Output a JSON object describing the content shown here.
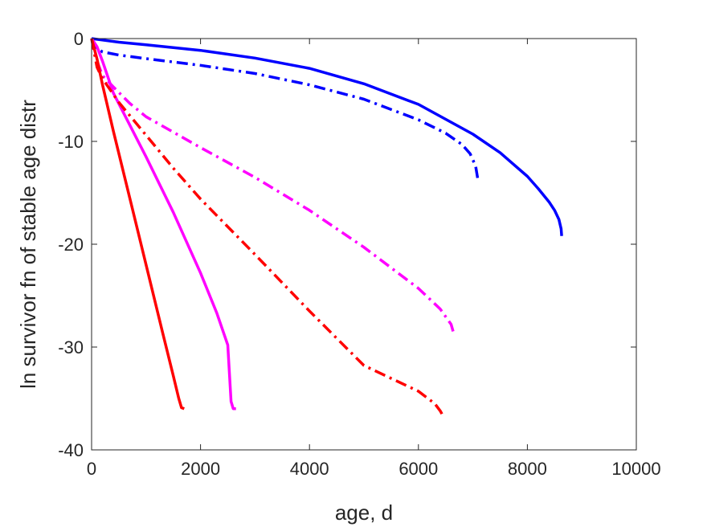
{
  "chart_data": {
    "type": "line",
    "title": "",
    "xlabel": "age, d",
    "ylabel": "ln survivor fn of stable age distr",
    "xlim": [
      0,
      10000
    ],
    "ylim": [
      -40,
      0
    ],
    "xticks": [
      "0",
      "2000",
      "4000",
      "6000",
      "8000",
      "10000"
    ],
    "yticks": [
      "0",
      "-10",
      "-20",
      "-30",
      "-40"
    ],
    "grid": false,
    "legend": "none",
    "series": [
      {
        "color": "#0000ff",
        "style": "solid",
        "x": [
          0,
          500,
          1000,
          2000,
          3000,
          4000,
          5000,
          6000,
          7000,
          7500,
          8000,
          8200,
          8400,
          8500,
          8580,
          8620,
          8630
        ],
        "y": [
          0,
          -0.35,
          -0.6,
          -1.15,
          -1.9,
          -2.9,
          -4.4,
          -6.4,
          -9.3,
          -11.1,
          -13.4,
          -14.6,
          -15.9,
          -16.7,
          -17.6,
          -18.5,
          -19.2
        ]
      },
      {
        "color": "#0000ff",
        "style": "dashdot",
        "x": [
          0,
          50,
          200,
          500,
          1000,
          2000,
          3000,
          4000,
          5000,
          6000,
          6500,
          6800,
          6950,
          7050,
          7100
        ],
        "y": [
          0,
          -0.8,
          -1.3,
          -1.6,
          -1.95,
          -2.6,
          -3.4,
          -4.5,
          -5.9,
          -7.9,
          -9.2,
          -10.3,
          -11.2,
          -12.4,
          -14.0
        ]
      },
      {
        "color": "#ff00ff",
        "style": "solid",
        "x": [
          0,
          100,
          200,
          400,
          1000,
          1500,
          2000,
          2300,
          2500,
          2560,
          2600,
          2650
        ],
        "y": [
          0,
          -0.8,
          -2.2,
          -5.3,
          -11.5,
          -16.9,
          -22.8,
          -26.7,
          -29.8,
          -35.3,
          -36.0,
          -36.0
        ]
      },
      {
        "color": "#ff00ff",
        "style": "dashdot",
        "x": [
          0,
          100,
          200,
          400,
          700,
          1000,
          2000,
          3000,
          4000,
          5000,
          6000,
          6400,
          6600,
          6660
        ],
        "y": [
          0,
          -2.2,
          -3.6,
          -4.7,
          -6.3,
          -7.6,
          -10.6,
          -13.5,
          -16.7,
          -20.3,
          -24.3,
          -26.3,
          -27.8,
          -28.9
        ]
      },
      {
        "color": "#ff0000",
        "style": "solid",
        "x": [
          0,
          100,
          200,
          400,
          700,
          1000,
          1300,
          1500,
          1600,
          1650,
          1700
        ],
        "y": [
          0,
          -2.0,
          -4.5,
          -9.0,
          -15.5,
          -22.0,
          -28.5,
          -32.8,
          -35.0,
          -35.9,
          -36.0
        ]
      },
      {
        "color": "#ff0000",
        "style": "dashdot",
        "x": [
          0,
          100,
          200,
          500,
          1000,
          1500,
          2000,
          3000,
          4000,
          5000,
          6000,
          6300,
          6400,
          6430,
          6440,
          6445
        ],
        "y": [
          0,
          -2.8,
          -3.9,
          -6.2,
          -9.4,
          -12.6,
          -15.6,
          -21.0,
          -26.5,
          -31.8,
          -34.3,
          -35.5,
          -36.2,
          -36.5,
          -36.6,
          -36.8
        ]
      }
    ]
  }
}
